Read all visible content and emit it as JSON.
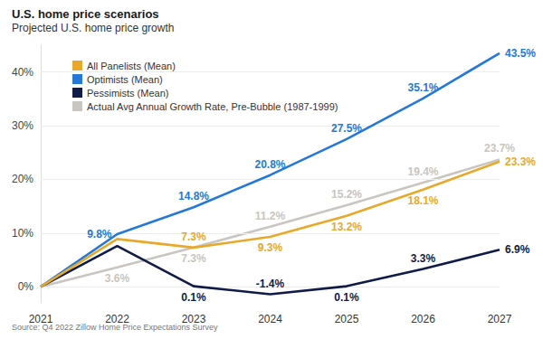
{
  "chart_data": {
    "type": "line",
    "title": "U.S. home price scenarios",
    "subtitle": "Projected U.S. home price growth",
    "source": "Source: Q4 2022 Zillow Home Price Expectations Survey",
    "categories": [
      "2021",
      "2022",
      "2023",
      "2024",
      "2025",
      "2026",
      "2027"
    ],
    "series": [
      {
        "name": "All Panelists (Mean)",
        "color": "#e8a82a",
        "values": [
          0,
          8.9,
          7.3,
          9.3,
          13.2,
          18.1,
          23.3
        ],
        "value_labels": [
          null,
          null,
          "7.3%",
          "9.3%",
          "13.2%",
          "18.1%",
          "23.3%"
        ]
      },
      {
        "name": "Optimists (Mean)",
        "color": "#2479d6",
        "values": [
          0,
          9.8,
          14.8,
          20.8,
          27.5,
          35.1,
          43.5
        ],
        "value_labels": [
          null,
          "9.8%",
          "14.8%",
          "20.8%",
          "27.5%",
          "35.1%",
          "43.5%"
        ]
      },
      {
        "name": "Pessimists (Mean)",
        "color": "#101b47",
        "values": [
          0,
          7.6,
          0.1,
          -1.4,
          0.1,
          3.3,
          6.9
        ],
        "value_labels": [
          null,
          null,
          "0.1%",
          "-1.4%",
          "0.1%",
          "3.3%",
          "6.9%"
        ]
      },
      {
        "name": "Actual Avg Annual Growth Rate, Pre-Bubble (1987-1999)",
        "color": "#c9c5c0",
        "values": [
          0,
          3.6,
          7.3,
          11.2,
          15.2,
          19.4,
          23.7
        ],
        "value_labels": [
          null,
          "3.6%",
          "7.3%",
          "11.2%",
          "15.2%",
          "19.4%",
          "23.7%"
        ]
      }
    ],
    "ylim": [
      -3,
      45
    ],
    "yticks": [
      {
        "value": 0,
        "label": "0%"
      },
      {
        "value": 10,
        "label": "10%"
      },
      {
        "value": 20,
        "label": "20%"
      },
      {
        "value": 30,
        "label": "30%"
      },
      {
        "value": 40,
        "label": "40%"
      }
    ],
    "grid": true,
    "legend": "upper left",
    "data_labels": true
  }
}
